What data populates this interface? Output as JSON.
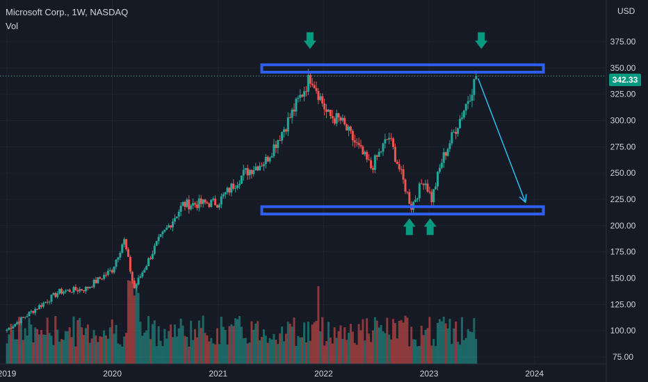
{
  "header": {
    "title": "Microsoft Corp., 1W, NASDAQ",
    "indicator": "Vol"
  },
  "price_scale": {
    "currency": "USD",
    "last_price": "342.33"
  },
  "colors": {
    "background": "#161a25",
    "up": "#26a69a",
    "down": "#ef5350",
    "grid": "#1f2330",
    "zone": "#2f5ff0",
    "arrow_marker": "#089981",
    "projection": "#29b6e6"
  },
  "chart_data": {
    "type": "candlestick",
    "title": "Microsoft Corp., 1W, NASDAQ",
    "xlabel": "",
    "ylabel": "",
    "x_ticks": [
      "2019",
      "2020",
      "2021",
      "2022",
      "2023",
      "2024"
    ],
    "y_ticks": [
      "75.00",
      "100.00",
      "125.00",
      "150.00",
      "175.00",
      "200.00",
      "225.00",
      "250.00",
      "275.00",
      "300.00",
      "325.00",
      "350.00",
      "375.00"
    ],
    "ylim": [
      70,
      402
    ],
    "grid": true,
    "last_price": 342.33,
    "price_path": [
      {
        "date": "2019-01-01",
        "close": 101
      },
      {
        "date": "2019-04-01",
        "close": 119
      },
      {
        "date": "2019-07-01",
        "close": 137
      },
      {
        "date": "2019-10-01",
        "close": 140
      },
      {
        "date": "2019-12-31",
        "close": 158
      },
      {
        "date": "2020-02-10",
        "close": 187
      },
      {
        "date": "2020-03-16",
        "close": 140
      },
      {
        "date": "2020-06-01",
        "close": 182
      },
      {
        "date": "2020-09-01",
        "close": 220
      },
      {
        "date": "2020-12-31",
        "close": 222
      },
      {
        "date": "2021-04-01",
        "close": 250
      },
      {
        "date": "2021-06-15",
        "close": 262
      },
      {
        "date": "2021-09-01",
        "close": 300
      },
      {
        "date": "2021-11-19",
        "close": 343
      },
      {
        "date": "2022-01-15",
        "close": 305
      },
      {
        "date": "2022-03-01",
        "close": 300
      },
      {
        "date": "2022-06-15",
        "close": 255
      },
      {
        "date": "2022-08-15",
        "close": 285
      },
      {
        "date": "2022-11-01",
        "close": 218
      },
      {
        "date": "2022-12-15",
        "close": 245
      },
      {
        "date": "2023-01-10",
        "close": 225
      },
      {
        "date": "2023-02-15",
        "close": 262
      },
      {
        "date": "2023-03-15",
        "close": 280
      },
      {
        "date": "2023-05-01",
        "close": 310
      },
      {
        "date": "2023-06-15",
        "close": 342.33
      }
    ],
    "annotations": [
      {
        "type": "zone",
        "name": "resistance",
        "from_date": "2021-06-01",
        "to_date": "2024-02-01",
        "y_low": 346,
        "y_high": 353
      },
      {
        "type": "zone",
        "name": "support",
        "from_date": "2021-06-01",
        "to_date": "2024-02-01",
        "y_low": 211,
        "y_high": 218
      },
      {
        "type": "arrow",
        "direction": "down",
        "date": "2021-11-15",
        "y": 376
      },
      {
        "type": "arrow",
        "direction": "down",
        "date": "2023-07-01",
        "y": 376
      },
      {
        "type": "arrow",
        "direction": "up",
        "date": "2022-10-25",
        "y": 199
      },
      {
        "type": "arrow",
        "direction": "up",
        "date": "2023-01-05",
        "y": 199
      },
      {
        "type": "projection",
        "from_date": "2023-06-20",
        "from_y": 340,
        "to_date": "2023-12-01",
        "to_y": 222
      }
    ]
  }
}
